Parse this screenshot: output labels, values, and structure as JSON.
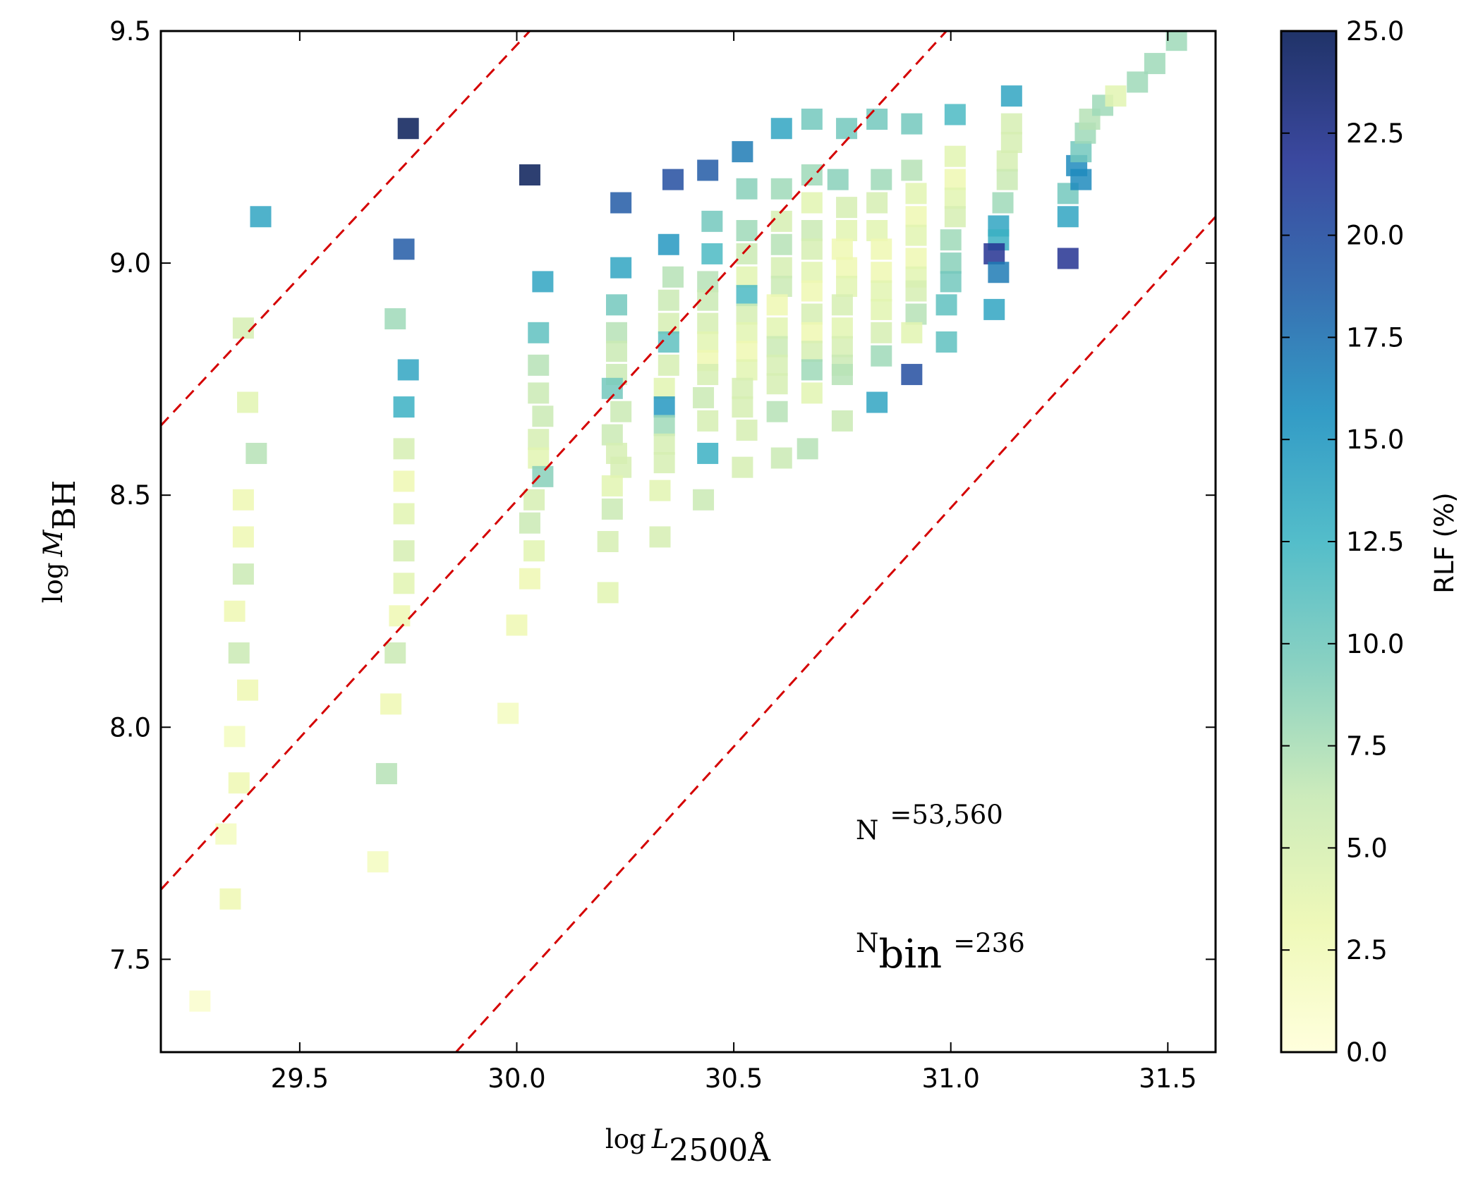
{
  "chart_data": {
    "type": "scatter",
    "xlabel": {
      "main": "log",
      "var": "L",
      "sub": "2500Å"
    },
    "ylabel": {
      "main": "log",
      "var": "M",
      "sub": "BH"
    },
    "annotations": [
      {
        "main": "N",
        "sub": "",
        "rest": "=53,560"
      },
      {
        "main": "N",
        "sub": "bin",
        "rest": "=236"
      }
    ],
    "colorbar_label": "RLF (%)",
    "xlim": [
      29.18,
      31.61
    ],
    "ylim": [
      7.3,
      9.5
    ],
    "clim": [
      0,
      25
    ],
    "xticks": [
      29.5,
      {
        "value": 30,
        "label": "30.0"
      },
      30.5,
      {
        "value": 31,
        "label": "31.0"
      },
      31.5
    ],
    "yticks": [
      7.5,
      {
        "value": 8,
        "label": "8.0"
      },
      8.5,
      {
        "value": 9,
        "label": "9.0"
      },
      9.5
    ],
    "cticks": [
      {
        "value": 0,
        "label": "0.0"
      },
      2.5,
      {
        "value": 5,
        "label": "5.0"
      },
      7.5,
      {
        "value": 10,
        "label": "10.0"
      },
      12.5,
      {
        "value": 15,
        "label": "15.0"
      },
      17.5,
      {
        "value": 20,
        "label": "20.0"
      },
      22.5,
      {
        "value": 25,
        "label": "25.0"
      }
    ],
    "colormap": [
      "#ffffd9",
      "#edf8b1",
      "#c7e9b4",
      "#7fcdbb",
      "#41b6c4",
      "#1d91c0",
      "#225ea8",
      "#253494",
      "#081d58"
    ],
    "line_color": "#d40000",
    "lines": [
      {
        "x": [
          29.18,
          30.03
        ],
        "y": [
          8.65,
          9.5
        ]
      },
      {
        "x": [
          29.18,
          30.99
        ],
        "y": [
          7.65,
          9.5
        ]
      },
      {
        "x": [
          29.86,
          31.61
        ],
        "y": [
          7.3,
          9.1
        ]
      }
    ],
    "x": [
      29.41,
      29.37,
      29.38,
      29.4,
      29.37,
      29.37,
      29.37,
      29.35,
      29.36,
      29.38,
      29.35,
      29.36,
      29.33,
      29.34,
      29.27,
      29.75,
      29.74,
      29.75,
      29.74,
      29.72,
      29.74,
      29.74,
      29.74,
      29.74,
      29.74,
      29.73,
      29.72,
      29.71,
      29.7,
      29.68,
      30.03,
      30.06,
      30.05,
      30.05,
      30.05,
      30.06,
      30.05,
      30.05,
      30.06,
      30.04,
      30.03,
      30.04,
      30.03,
      30.0,
      29.98,
      30.24,
      30.24,
      30.23,
      30.23,
      30.23,
      30.23,
      30.22,
      30.24,
      30.22,
      30.23,
      30.24,
      30.22,
      30.22,
      30.21,
      30.21,
      30.36,
      30.35,
      30.36,
      30.35,
      30.35,
      30.35,
      30.35,
      30.34,
      30.34,
      30.34,
      30.34,
      30.34,
      30.33,
      30.33,
      30.44,
      30.45,
      30.45,
      30.44,
      30.44,
      30.44,
      30.44,
      30.44,
      30.44,
      30.43,
      30.44,
      30.44,
      30.43,
      30.52,
      30.53,
      30.53,
      30.53,
      30.53,
      30.53,
      30.53,
      30.53,
      30.53,
      30.53,
      30.52,
      30.52,
      30.53,
      30.52,
      30.61,
      30.61,
      30.61,
      30.61,
      30.61,
      30.61,
      30.6,
      30.6,
      30.6,
      30.6,
      30.6,
      30.6,
      30.61,
      30.68,
      30.68,
      30.68,
      30.68,
      30.68,
      30.68,
      30.68,
      30.68,
      30.68,
      30.68,
      30.68,
      30.68,
      30.67,
      30.76,
      30.74,
      30.76,
      30.76,
      30.75,
      30.76,
      30.76,
      30.75,
      30.75,
      30.75,
      30.75,
      30.75,
      30.75,
      30.83,
      30.84,
      30.83,
      30.83,
      30.84,
      30.84,
      30.84,
      30.84,
      30.84,
      30.84,
      30.83,
      30.91,
      30.91,
      30.92,
      30.92,
      30.92,
      30.92,
      30.92,
      30.92,
      30.92,
      30.91,
      30.91,
      31.01,
      31.01,
      31.01,
      31.01,
      31.01,
      31.0,
      31.0,
      31.0,
      30.99,
      30.99,
      31.14,
      31.14,
      31.14,
      31.13,
      31.13,
      31.12,
      31.11,
      31.11,
      31.1,
      31.11,
      31.1,
      31.27,
      31.27,
      31.27,
      31.29,
      31.3,
      31.3,
      31.31,
      31.32,
      31.35,
      31.38,
      31.43,
      31.47,
      31.52
    ],
    "y": [
      9.1,
      8.86,
      8.7,
      8.59,
      8.49,
      8.41,
      8.33,
      8.25,
      8.16,
      8.08,
      7.98,
      7.88,
      7.77,
      7.63,
      7.41,
      9.29,
      9.03,
      8.77,
      8.69,
      8.88,
      8.6,
      8.53,
      8.46,
      8.38,
      8.31,
      8.24,
      8.16,
      8.05,
      7.9,
      7.71,
      9.19,
      8.96,
      8.85,
      8.78,
      8.72,
      8.67,
      8.62,
      8.58,
      8.54,
      8.49,
      8.44,
      8.38,
      8.32,
      8.22,
      8.03,
      9.13,
      8.99,
      8.91,
      8.85,
      8.81,
      8.76,
      8.73,
      8.68,
      8.63,
      8.59,
      8.56,
      8.52,
      8.47,
      8.4,
      8.29,
      9.18,
      9.04,
      8.97,
      8.92,
      8.87,
      8.83,
      8.78,
      8.73,
      8.69,
      8.65,
      8.61,
      8.57,
      8.51,
      8.41,
      9.2,
      9.09,
      9.02,
      8.96,
      8.92,
      8.87,
      8.83,
      8.79,
      8.76,
      8.71,
      8.66,
      8.59,
      8.49,
      9.24,
      9.16,
      9.07,
      9.02,
      8.97,
      8.93,
      8.89,
      8.85,
      8.81,
      8.77,
      8.73,
      8.69,
      8.64,
      8.56,
      9.29,
      9.16,
      9.09,
      9.04,
      8.99,
      8.95,
      8.91,
      8.86,
      8.82,
      8.78,
      8.74,
      8.68,
      8.58,
      9.31,
      9.19,
      9.13,
      9.07,
      9.03,
      8.98,
      8.94,
      8.89,
      8.85,
      8.81,
      8.77,
      8.72,
      8.6,
      9.29,
      9.18,
      9.12,
      9.07,
      9.03,
      8.99,
      8.95,
      8.91,
      8.86,
      8.82,
      8.78,
      8.76,
      8.66,
      9.31,
      9.18,
      9.13,
      9.07,
      9.03,
      8.98,
      8.94,
      8.9,
      8.85,
      8.8,
      8.7,
      9.3,
      9.2,
      9.15,
      9.1,
      9.06,
      9.01,
      8.97,
      8.94,
      8.89,
      8.85,
      8.76,
      9.32,
      9.23,
      9.18,
      9.14,
      9.1,
      9.05,
      9.0,
      8.96,
      8.91,
      8.83,
      9.36,
      9.3,
      9.26,
      9.22,
      9.18,
      9.13,
      9.08,
      9.05,
      9.02,
      8.98,
      8.9,
      9.01,
      9.1,
      9.15,
      9.21,
      9.18,
      9.24,
      9.28,
      9.31,
      9.34,
      9.36,
      9.39,
      9.43,
      9.48
    ],
    "c": [
      14,
      5,
      4,
      7,
      3,
      3,
      6,
      3,
      6,
      3,
      2,
      3,
      2,
      3,
      1,
      25,
      19,
      14,
      13,
      8,
      5,
      3,
      4,
      5,
      4,
      3,
      6,
      3,
      7,
      2,
      25,
      14,
      11,
      7,
      6,
      6,
      5,
      4,
      9,
      5,
      6,
      4,
      3,
      3,
      2,
      19,
      14,
      10,
      7,
      6,
      6,
      10,
      6,
      6,
      5,
      5,
      4,
      6,
      5,
      4,
      20,
      15,
      7,
      6,
      5,
      11,
      5,
      4,
      15,
      8,
      5,
      5,
      4,
      5,
      19,
      10,
      12,
      7,
      6,
      5,
      4,
      3,
      5,
      6,
      5,
      13,
      6,
      17,
      9,
      8,
      6,
      4,
      12,
      5,
      4,
      3,
      4,
      5,
      5,
      5,
      5,
      14,
      8,
      5,
      7,
      5,
      6,
      3,
      4,
      6,
      5,
      5,
      7,
      6,
      10,
      8,
      4,
      6,
      5,
      4,
      3,
      5,
      3,
      5,
      8,
      4,
      7,
      10,
      9,
      5,
      4,
      3,
      3,
      4,
      5,
      4,
      5,
      6,
      7,
      6,
      10,
      8,
      5,
      4,
      3,
      3,
      4,
      4,
      5,
      8,
      14,
      10,
      7,
      4,
      3,
      4,
      3,
      4,
      5,
      7,
      4,
      20,
      12,
      4,
      3,
      4,
      5,
      8,
      9,
      10,
      11,
      11,
      14,
      5,
      5,
      5,
      6,
      8,
      14,
      13,
      22,
      17,
      14,
      22,
      14,
      10,
      16,
      16,
      10,
      8,
      7,
      8,
      4,
      8,
      8,
      8
    ]
  }
}
